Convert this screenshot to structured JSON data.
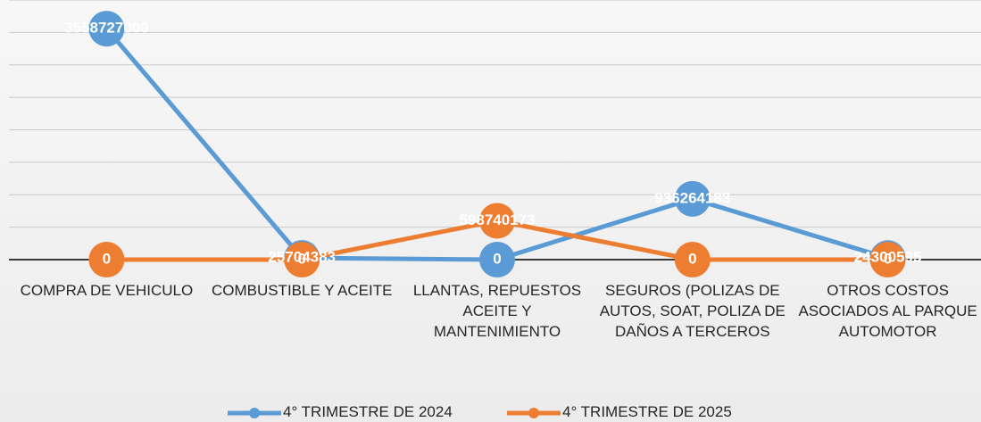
{
  "chart_data": {
    "type": "line",
    "categories": [
      "COMPRA DE VEHICULO",
      "COMBUSTIBLE Y ACEITE",
      "LLANTAS, REPUESTOS ACEITE Y MANTENIMIENTO",
      "SEGUROS (POLIZAS DE AUTOS, SOAT, POLIZA DE DAÑOS A TERCEROS",
      "OTROS COSTOS ASOCIADOS AL PARQUE AUTOMOTOR"
    ],
    "series": [
      {
        "name": "4° TRIMESTRE DE 2024",
        "color": "#5b9bd5",
        "values": [
          3558727000,
          25704383,
          0,
          936264183,
          24300595
        ]
      },
      {
        "name": "4° TRIMESTRE DE 2025",
        "color": "#ed7d31",
        "values": [
          0,
          0,
          598740173,
          0,
          0
        ]
      }
    ],
    "ylim": [
      0,
      4000000000
    ],
    "yticks": [
      0,
      500000000,
      1000000000,
      1500000000,
      2000000000,
      2500000000,
      3000000000,
      3500000000,
      4000000000
    ],
    "grid": true,
    "legend": "bottom",
    "data_labels": true
  }
}
